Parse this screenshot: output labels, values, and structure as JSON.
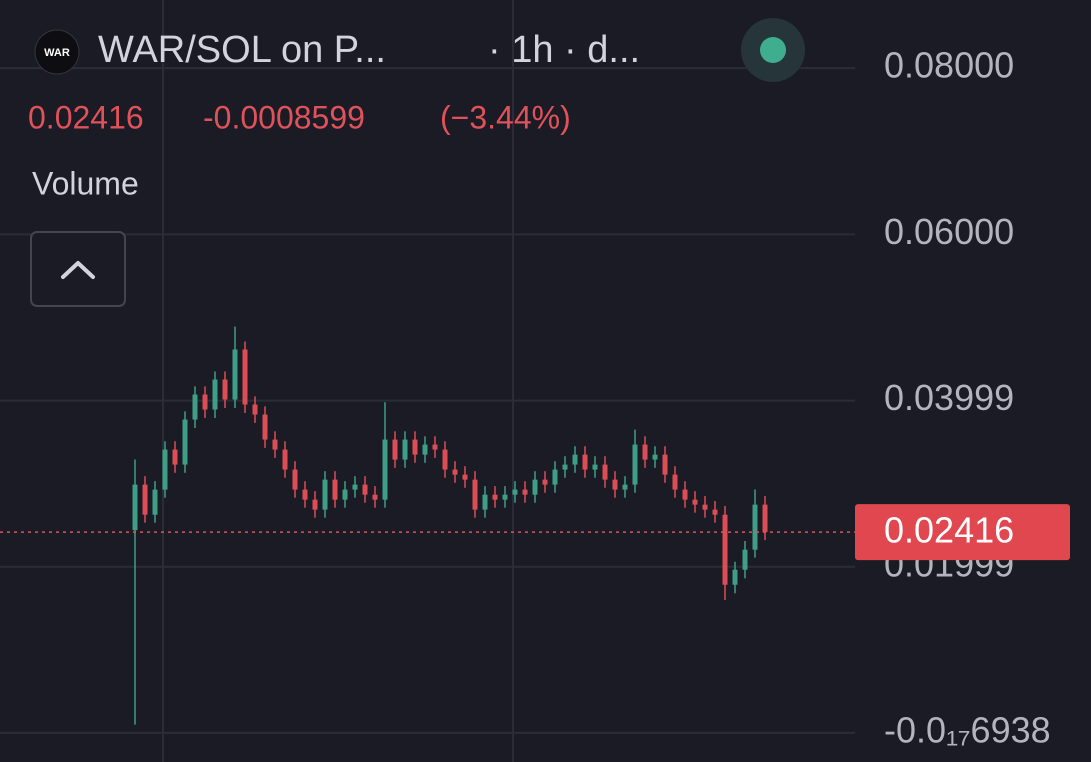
{
  "header": {
    "logo": "WAR",
    "symbol": "WAR/SOL on P...",
    "interval": "· 1h · d...",
    "change": "-0.0008599",
    "change_percent": "(−3.44%)",
    "indicator": "Volume"
  },
  "chart_data": {
    "type": "candlestick",
    "up_color": "#3f9e86",
    "down_color": "#dc4d55",
    "ylim": [
      -0.0035,
      0.0882
    ],
    "yticks": [
      {
        "value": 0.08,
        "label": "0.08000"
      },
      {
        "value": 0.06,
        "label": "0.06000"
      },
      0.03999,
      0.01999,
      {
        "value": -6.938e-19,
        "label": "-0.0₁₇6938"
      }
    ],
    "grid": true,
    "last_price": 0.02416,
    "open": [
      0.0244,
      0.02988,
      0.02626,
      0.02928,
      0.0341,
      0.03229,
      0.03771,
      0.04072,
      0.03892,
      0.04253,
      0.04012,
      0.04614,
      0.03952,
      0.03831,
      0.0353,
      0.0341,
      0.03169,
      0.02928,
      0.02807,
      0.02687,
      0.03048,
      0.02807,
      0.02928,
      0.02988,
      0.02867,
      0.02807,
      0.0353,
      0.03289,
      0.0353,
      0.03349,
      0.0347,
      0.0341,
      0.03169,
      0.03108,
      0.03048,
      0.02687,
      0.02867,
      0.02807,
      0.02867,
      0.02928,
      0.02867,
      0.03048,
      0.02988,
      0.03169,
      0.03229,
      0.03349,
      0.03169,
      0.03229,
      0.03048,
      0.02928,
      0.02988,
      0.0347,
      0.03289,
      0.03349,
      0.03108,
      0.02928,
      0.02807,
      0.02747,
      0.02687,
      0.02626,
      0.01783,
      0.01964,
      0.02205,
      0.02747
    ],
    "high": [
      0.0329,
      0.0309,
      0.0303,
      0.0351,
      0.0351,
      0.0387,
      0.0417,
      0.0417,
      0.0435,
      0.0435,
      0.0489,
      0.0471,
      0.0405,
      0.0393,
      0.0363,
      0.0351,
      0.0327,
      0.0303,
      0.0291,
      0.0315,
      0.0315,
      0.0303,
      0.0309,
      0.0309,
      0.0297,
      0.0398,
      0.0363,
      0.0363,
      0.0363,
      0.0357,
      0.0357,
      0.0351,
      0.0327,
      0.0321,
      0.0315,
      0.0297,
      0.0297,
      0.0297,
      0.0303,
      0.0303,
      0.0315,
      0.0315,
      0.0327,
      0.0333,
      0.0345,
      0.0345,
      0.0333,
      0.0333,
      0.0315,
      0.0309,
      0.0365,
      0.0357,
      0.0345,
      0.0345,
      0.0321,
      0.0303,
      0.0291,
      0.0285,
      0.0279,
      0.0273,
      0.0206,
      0.0231,
      0.0293,
      0.0285
    ],
    "low": [
      0.001,
      0.0253,
      0.0253,
      0.0283,
      0.0313,
      0.0313,
      0.0367,
      0.0379,
      0.0379,
      0.0391,
      0.0391,
      0.0385,
      0.0373,
      0.0343,
      0.0331,
      0.0307,
      0.0283,
      0.0271,
      0.0259,
      0.0259,
      0.0271,
      0.0271,
      0.0283,
      0.0277,
      0.0271,
      0.0271,
      0.0319,
      0.0319,
      0.0325,
      0.0325,
      0.0331,
      0.0307,
      0.0301,
      0.0295,
      0.0259,
      0.0259,
      0.0271,
      0.0271,
      0.0277,
      0.0277,
      0.0277,
      0.0289,
      0.0289,
      0.0307,
      0.0313,
      0.0307,
      0.0307,
      0.0295,
      0.0283,
      0.0283,
      0.0289,
      0.0319,
      0.0319,
      0.0301,
      0.0283,
      0.0271,
      0.0265,
      0.0259,
      0.0253,
      0.016,
      0.0168,
      0.0186,
      0.0211,
      0.0232
    ],
    "close": [
      0.02988,
      0.02626,
      0.02928,
      0.0341,
      0.03229,
      0.03771,
      0.04072,
      0.03892,
      0.04253,
      0.04012,
      0.04614,
      0.03952,
      0.03831,
      0.0353,
      0.0341,
      0.03169,
      0.02928,
      0.02807,
      0.02687,
      0.03048,
      0.02807,
      0.02928,
      0.02988,
      0.02867,
      0.02807,
      0.0353,
      0.03289,
      0.0353,
      0.03349,
      0.0347,
      0.0341,
      0.03169,
      0.03108,
      0.03048,
      0.02687,
      0.02867,
      0.02807,
      0.02867,
      0.02928,
      0.02867,
      0.03048,
      0.02988,
      0.03169,
      0.03229,
      0.03349,
      0.03169,
      0.03229,
      0.03048,
      0.02928,
      0.02988,
      0.0347,
      0.03289,
      0.03349,
      0.03108,
      0.02928,
      0.02807,
      0.02747,
      0.02687,
      0.02626,
      0.01783,
      0.01964,
      0.02205,
      0.02747,
      0.02416
    ]
  }
}
